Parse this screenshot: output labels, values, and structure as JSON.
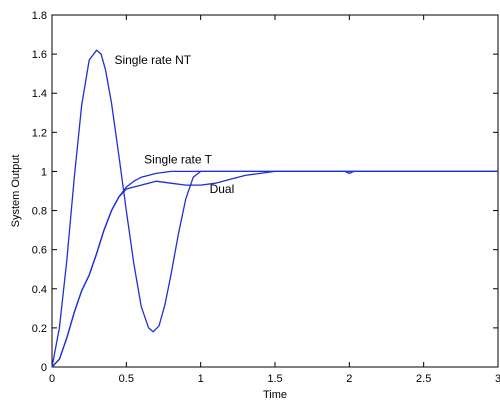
{
  "chart_data": {
    "type": "line",
    "title": "",
    "xlabel": "Time",
    "ylabel": "System Output",
    "xlim": [
      0,
      3
    ],
    "ylim": [
      0,
      1.8
    ],
    "xticks": [
      0,
      0.5,
      1,
      1.5,
      2,
      2.5,
      3
    ],
    "xtick_labels": [
      "0",
      "0.5",
      "1",
      "1.5",
      "2",
      "2.5",
      "3"
    ],
    "yticks": [
      0,
      0.2,
      0.4,
      0.6,
      0.8,
      1,
      1.2,
      1.4,
      1.6,
      1.8
    ],
    "ytick_labels": [
      "0",
      "0.2",
      "0.4",
      "0.6",
      "0.8",
      "1",
      "1.2",
      "1.4",
      "1.6",
      "1.8"
    ],
    "grid": false,
    "line_color": "#1f2fd6",
    "series": [
      {
        "label": "Single rate NT",
        "x": [
          0,
          0.05,
          0.1,
          0.15,
          0.2,
          0.25,
          0.3,
          0.33,
          0.36,
          0.4,
          0.45,
          0.5,
          0.55,
          0.6,
          0.65,
          0.68,
          0.72,
          0.76,
          0.8,
          0.85,
          0.9,
          0.95,
          1.0,
          1.05,
          1.1,
          1.2,
          1.3,
          1.5,
          2.0,
          3.0
        ],
        "y": [
          0,
          0.2,
          0.55,
          0.97,
          1.34,
          1.57,
          1.62,
          1.6,
          1.52,
          1.35,
          1.08,
          0.8,
          0.53,
          0.31,
          0.2,
          0.18,
          0.21,
          0.32,
          0.47,
          0.68,
          0.86,
          0.97,
          1.0,
          1.0,
          1.0,
          1.0,
          1.0,
          1.0,
          1.0,
          1.0
        ]
      },
      {
        "label": "Single rate T",
        "x": [
          0,
          0.05,
          0.1,
          0.15,
          0.2,
          0.25,
          0.3,
          0.35,
          0.4,
          0.45,
          0.5,
          0.55,
          0.6,
          0.7,
          0.8,
          0.9,
          1.0,
          1.2,
          1.5,
          2.0,
          3.0
        ],
        "y": [
          0,
          0.04,
          0.15,
          0.28,
          0.39,
          0.47,
          0.58,
          0.7,
          0.8,
          0.87,
          0.92,
          0.95,
          0.97,
          0.99,
          1.0,
          1.0,
          1.0,
          1.0,
          1.0,
          1.0,
          1.0
        ]
      },
      {
        "label": "Dual",
        "x": [
          0,
          0.05,
          0.1,
          0.15,
          0.2,
          0.25,
          0.3,
          0.35,
          0.4,
          0.45,
          0.5,
          0.6,
          0.7,
          0.8,
          0.9,
          1.0,
          1.1,
          1.2,
          1.3,
          1.4,
          1.5,
          1.97,
          2.0,
          2.03,
          3.0
        ],
        "y": [
          0,
          0.04,
          0.15,
          0.28,
          0.39,
          0.47,
          0.58,
          0.7,
          0.8,
          0.87,
          0.91,
          0.93,
          0.95,
          0.94,
          0.93,
          0.93,
          0.94,
          0.96,
          0.98,
          0.99,
          1.0,
          1.0,
          0.99,
          1.0,
          1.0
        ]
      }
    ],
    "annotations": [
      {
        "text": "Single rate NT",
        "x": 0.42,
        "y": 1.55
      },
      {
        "text": "Single rate T",
        "x": 0.62,
        "y": 1.04
      },
      {
        "text": "Dual",
        "x": 1.06,
        "y": 0.89
      }
    ]
  }
}
